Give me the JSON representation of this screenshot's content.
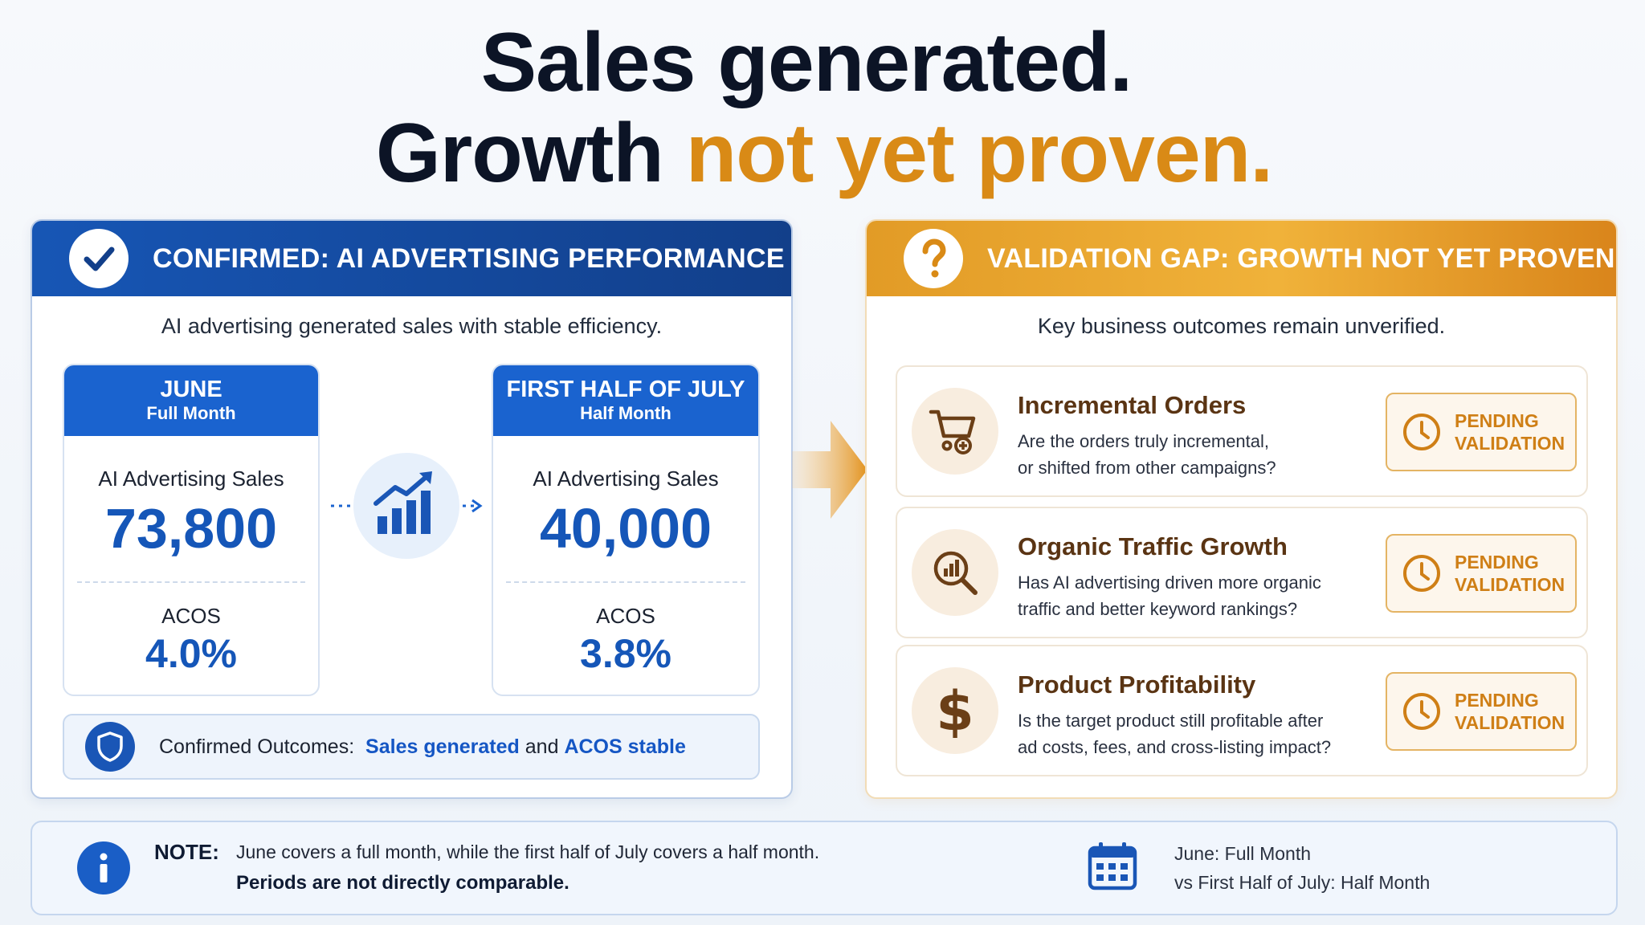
{
  "headline": {
    "line1": "Sales generated.",
    "line2_prefix": "Growth",
    "line2_accent": "not yet proven."
  },
  "left_panel": {
    "header": "CONFIRMED:  AI ADVERTISING PERFORMANCE",
    "subtitle": "AI advertising generated sales with stable efficiency.",
    "periods": [
      {
        "title": "JUNE",
        "subtitle": "Full Month",
        "sales_label": "AI Advertising Sales",
        "sales_value": "73,800",
        "acos_label": "ACOS",
        "acos_value": "4.0%"
      },
      {
        "title": "FIRST HALF OF JULY",
        "subtitle": "Half Month",
        "sales_label": "AI Advertising Sales",
        "sales_value": "40,000",
        "acos_label": "ACOS",
        "acos_value": "3.8%"
      }
    ],
    "confirmed": {
      "prefix": "Confirmed Outcomes:",
      "highlight1": "Sales generated",
      "joiner": "and",
      "highlight2": "ACOS stable"
    }
  },
  "right_panel": {
    "header": "VALIDATION GAP: GROWTH  NOT YET PROVEN",
    "subtitle": "Key business outcomes remain unverified.",
    "outcomes": [
      {
        "icon": "cart-plus-icon",
        "title": "Incremental Orders",
        "desc_line1": "Are the orders truly incremental,",
        "desc_line2": "or shifted from other campaigns?",
        "status_line1": "PENDING",
        "status_line2": "VALIDATION"
      },
      {
        "icon": "magnifier-chart-icon",
        "title": "Organic Traffic Growth",
        "desc_line1": "Has AI advertising driven more organic",
        "desc_line2": "traffic and better keyword rankings?",
        "status_line1": "PENDING",
        "status_line2": "VALIDATION"
      },
      {
        "icon": "dollar-icon",
        "title": "Product Profitability",
        "desc_line1": "Is the target product still profitable after",
        "desc_line2": "ad costs, fees, and cross-listing impact?",
        "status_line1": "PENDING",
        "status_line2": "VALIDATION"
      }
    ]
  },
  "note": {
    "label": "NOTE:",
    "text": "June covers a full month, while the first half of July covers a half month.",
    "strong": "Periods are not directly comparable.",
    "comparison_line1": "June: Full Month",
    "comparison_line2": "vs First Half of July: Half Month"
  },
  "colors": {
    "brand_blue": "#1a63cf",
    "accent_orange": "#d98a16",
    "dark_navy": "#0c1426"
  }
}
